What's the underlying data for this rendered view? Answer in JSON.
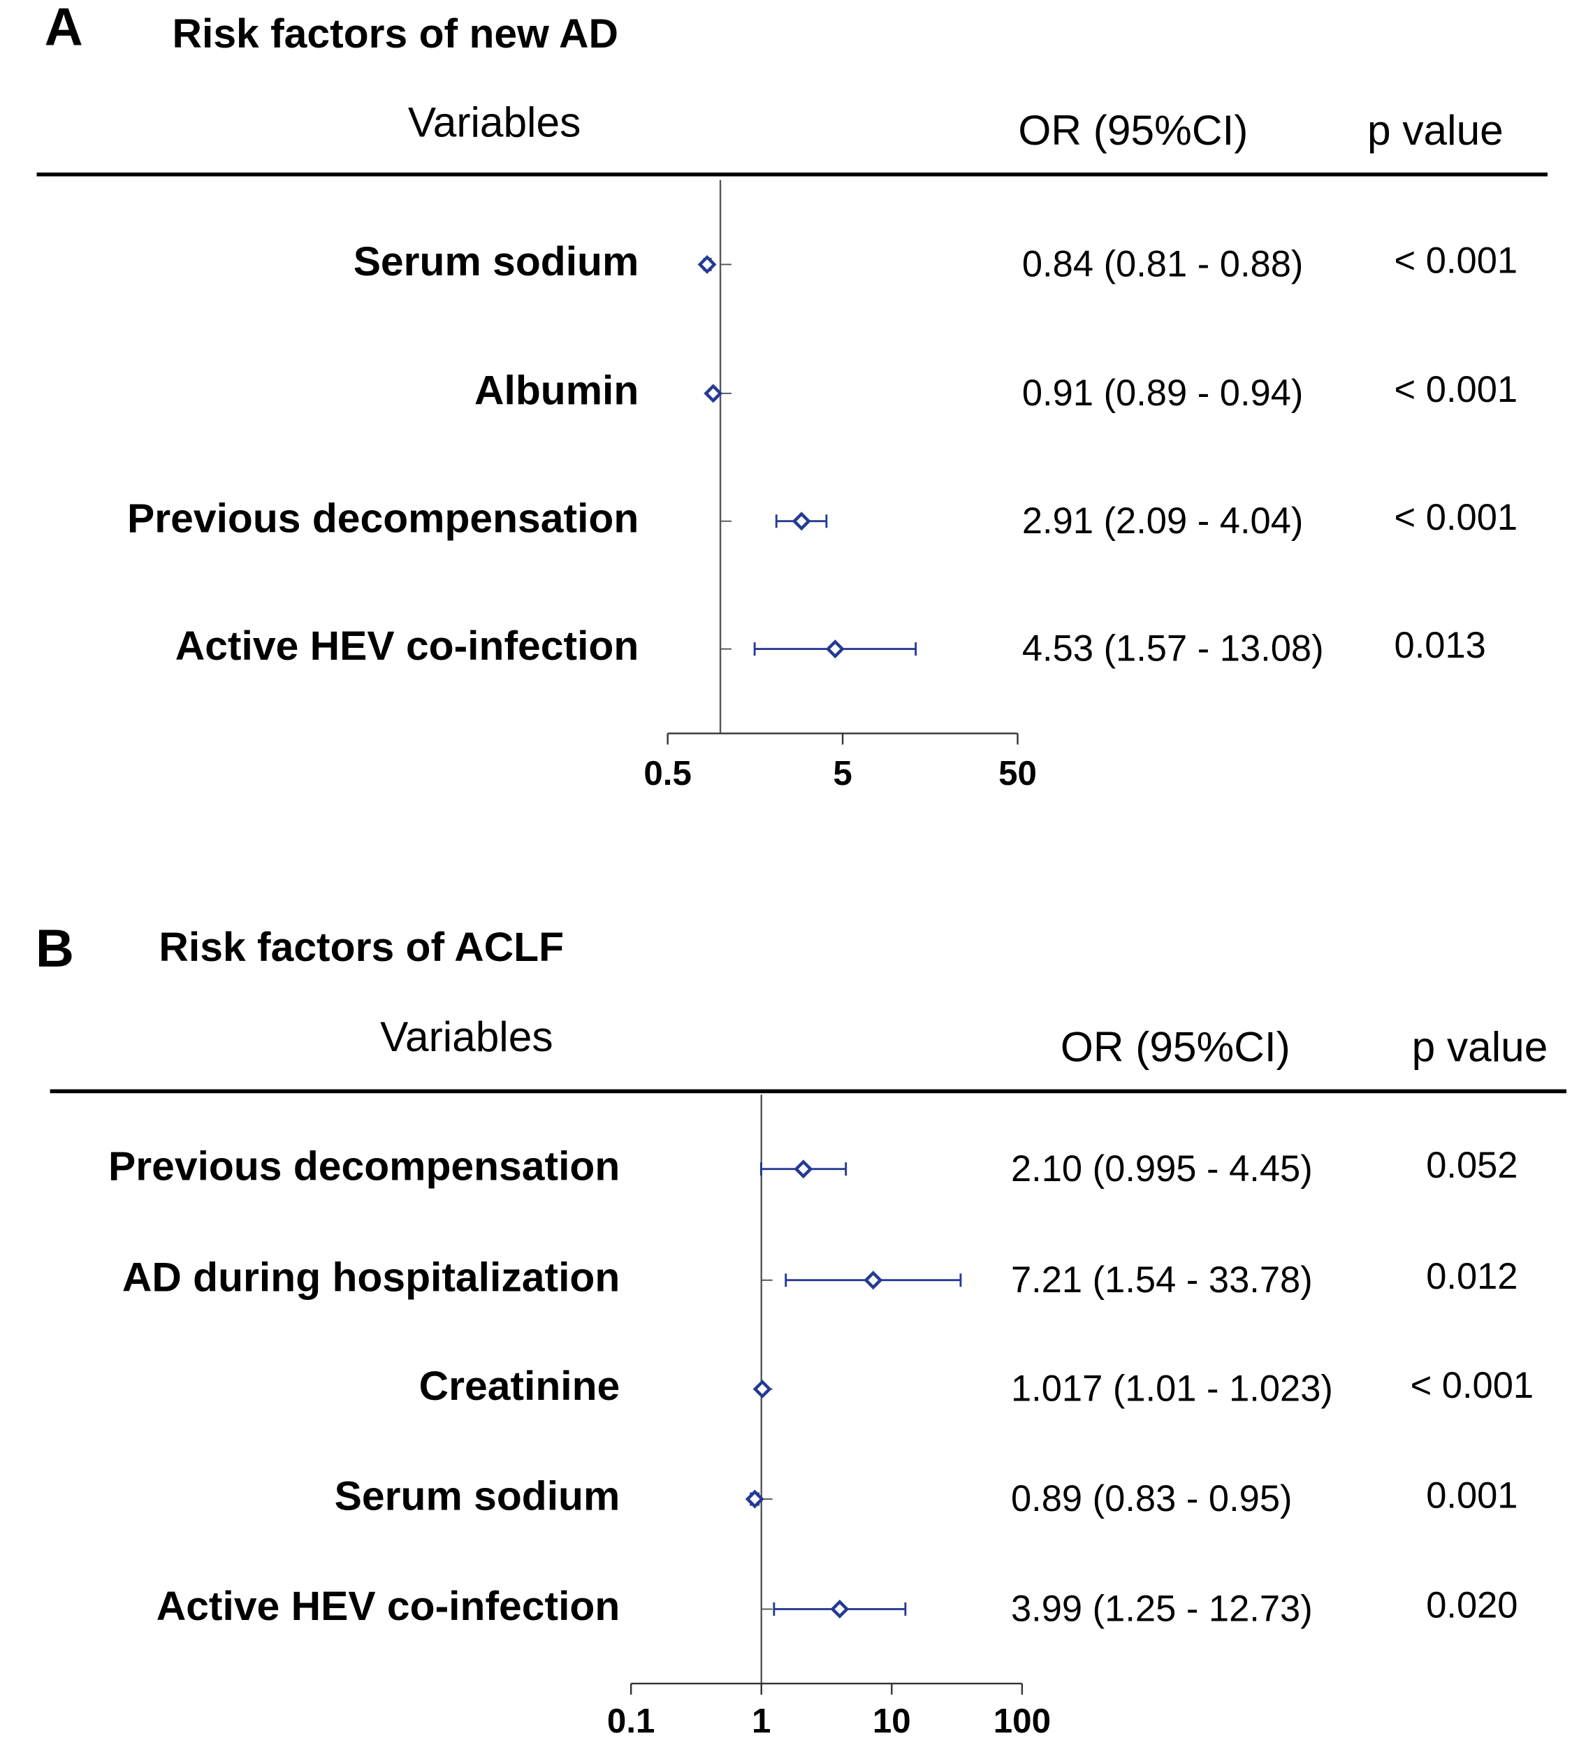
{
  "chart_data": [
    {
      "type": "forest",
      "panel": "A",
      "title": "Risk factors of new AD",
      "columns": [
        "Variables",
        "OR (95%CI)",
        "p value"
      ],
      "categories": [
        "Serum sodium",
        "Albumin",
        "Previous decompensation",
        "Active HEV co-infection"
      ],
      "values": [
        0.84,
        0.91,
        2.91,
        4.53
      ],
      "lower": [
        0.81,
        0.89,
        2.09,
        1.57
      ],
      "upper": [
        0.88,
        0.94,
        4.04,
        13.08
      ],
      "value_labels": [
        "0.84 (0.81 - 0.88)",
        "0.91 (0.89 - 0.94)",
        "2.91 (2.09 - 4.04)",
        "4.53 (1.57 - 13.08)"
      ],
      "p_values": [
        "< 0.001",
        "< 0.001",
        "< 0.001",
        "0.013"
      ],
      "color": "#243a93",
      "xscale": "log",
      "reference": 1,
      "xlim": [
        0.5,
        50
      ],
      "xticks": [
        0.5,
        5,
        50
      ]
    },
    {
      "type": "forest",
      "panel": "B",
      "title": "Risk factors of ACLF",
      "columns": [
        "Variables",
        "OR (95%CI)",
        "p value"
      ],
      "categories": [
        "Previous decompensation",
        "AD during hospitalization",
        "Creatinine",
        "Serum sodium",
        "Active HEV co-infection"
      ],
      "values": [
        2.1,
        7.21,
        1.017,
        0.89,
        3.99
      ],
      "lower": [
        0.995,
        1.54,
        1.01,
        0.83,
        1.25
      ],
      "upper": [
        4.45,
        33.78,
        1.023,
        0.95,
        12.73
      ],
      "value_labels": [
        "2.10 (0.995 - 4.45)",
        "7.21 (1.54 - 33.78)",
        "1.017 (1.01 - 1.023)",
        "0.89 (0.83 - 0.95)",
        "3.99 (1.25 - 12.73)"
      ],
      "p_values": [
        "0.052",
        "0.012",
        "< 0.001",
        "0.001",
        "0.020"
      ],
      "color": "#243a93",
      "xscale": "log",
      "reference": 1,
      "xlim": [
        0.1,
        100
      ],
      "xticks": [
        0.1,
        1,
        10,
        100
      ]
    }
  ]
}
